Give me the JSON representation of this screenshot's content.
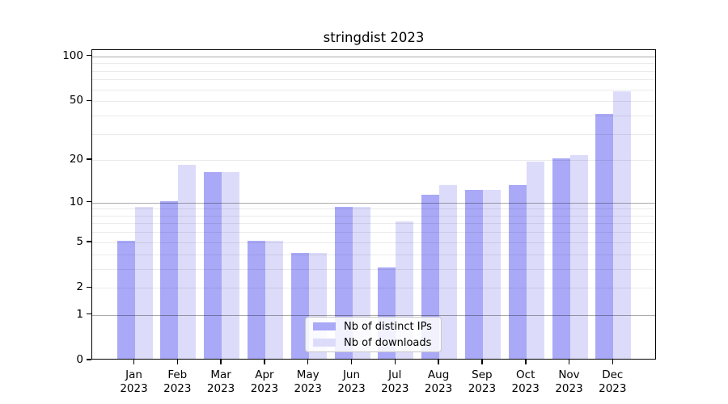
{
  "title": "stringdist 2023",
  "legend": {
    "items": [
      {
        "label": "Nb of distinct IPs",
        "color": "#a9a9f8"
      },
      {
        "label": "Nb of downloads",
        "color": "#dcdcfa"
      }
    ]
  },
  "chart_data": {
    "type": "bar",
    "title": "stringdist 2023",
    "categories": [
      "Jan",
      "Feb",
      "Mar",
      "Apr",
      "May",
      "Jun",
      "Jul",
      "Aug",
      "Sep",
      "Oct",
      "Nov",
      "Dec"
    ],
    "xtick_year": "2023",
    "series": [
      {
        "name": "Nb of distinct IPs",
        "color": "#a9a9f8",
        "values": [
          5,
          10,
          16,
          5,
          4,
          9,
          3,
          11,
          12,
          13,
          20,
          40
        ]
      },
      {
        "name": "Nb of downloads",
        "color": "#dcdcfa",
        "values": [
          9,
          18,
          16,
          5,
          4,
          9,
          7,
          13,
          12,
          19,
          21,
          57
        ]
      }
    ],
    "xlabel": "",
    "ylabel": "",
    "yscale": "log1p",
    "ylim": [
      0,
      110
    ],
    "yticks": [
      0,
      1,
      2,
      5,
      10,
      20,
      50,
      100
    ],
    "major_gridlines": [
      1,
      10,
      100
    ],
    "minor_gridlines": [
      2,
      3,
      4,
      5,
      6,
      7,
      8,
      9,
      20,
      30,
      40,
      50,
      60,
      70,
      80,
      90
    ],
    "grid": "on",
    "legend_position": "bottom-center",
    "bar_colors": {
      "series1": "#a9a9f8",
      "series2": "#dcdcfa"
    }
  }
}
